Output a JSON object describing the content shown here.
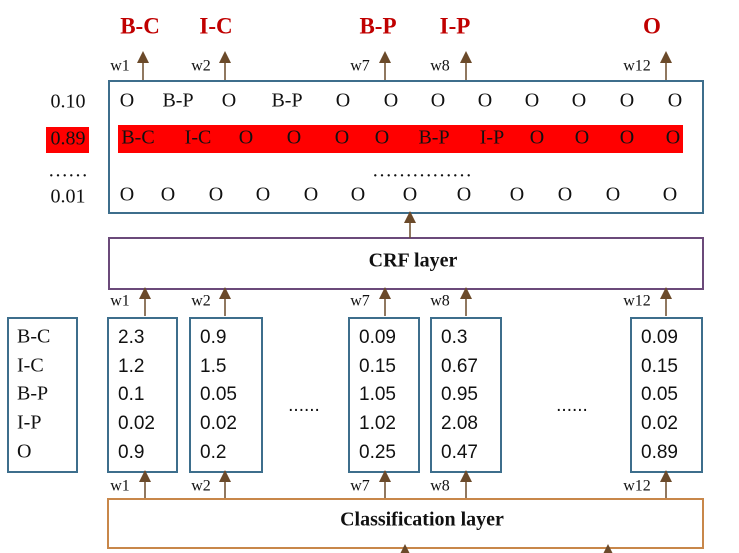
{
  "output_tags": [
    "B-C",
    "I-C",
    "B-P",
    "I-P",
    "O"
  ],
  "output_words": [
    "w1",
    "w2",
    "w7",
    "w8",
    "w12"
  ],
  "paths": {
    "scores": [
      "0.10",
      "0.89",
      "0.01"
    ],
    "ellipsis_score": "……",
    "rows": [
      [
        "O",
        "B-P",
        "O",
        "B-P",
        "O",
        "O",
        "O",
        "O",
        "O",
        "O",
        "O",
        "O"
      ],
      [
        "B-C",
        "I-C",
        "O",
        "O",
        "O",
        "O",
        "B-P",
        "I-P",
        "O",
        "O",
        "O",
        "O"
      ],
      [
        "O",
        "O",
        "O",
        "O",
        "O",
        "O",
        "O",
        "O",
        "O",
        "O",
        "O",
        "O"
      ]
    ],
    "ellipsis_row": "……………"
  },
  "crf_layer": {
    "label": "CRF layer",
    "words": [
      "w1",
      "w2",
      "w7",
      "w8",
      "w12"
    ]
  },
  "emissions": {
    "tags": [
      "B-C",
      "I-C",
      "B-P",
      "I-P",
      "O"
    ],
    "columns": [
      {
        "values": [
          "2.3",
          "1.2",
          "0.1",
          "0.02",
          "0.9"
        ]
      },
      {
        "values": [
          "0.9",
          "1.5",
          "0.05",
          "0.02",
          "0.2"
        ]
      },
      {
        "values": [
          "0.09",
          "0.15",
          "1.05",
          "1.02",
          "0.25"
        ]
      },
      {
        "values": [
          "0.3",
          "0.67",
          "0.95",
          "2.08",
          "0.47"
        ]
      },
      {
        "values": [
          "0.09",
          "0.15",
          "0.05",
          "0.02",
          "0.89"
        ]
      }
    ],
    "ellipses": [
      "......",
      "......"
    ]
  },
  "classification_layer": {
    "label": "Classification layer",
    "words": [
      "w1",
      "w2",
      "w7",
      "w8",
      "w12"
    ]
  }
}
